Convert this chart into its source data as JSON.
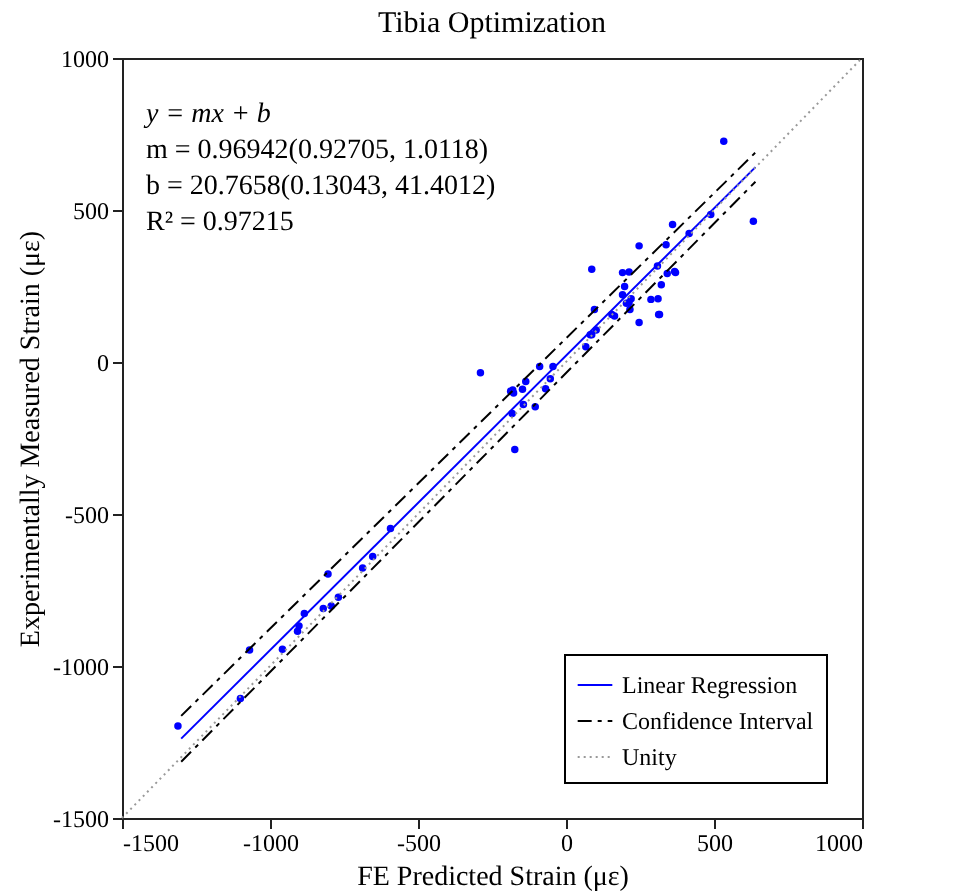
{
  "chart_data": {
    "type": "scatter",
    "title": "Tibia Optimization",
    "xlabel": "FE Predicted Strain (με)",
    "ylabel": "Experimentally Measured Strain (με)",
    "xlim": [
      -1500,
      1000
    ],
    "xticks": [
      -1500,
      -1000,
      -500,
      0,
      500,
      1000
    ],
    "ylim": [
      -1500,
      1000
    ],
    "yticks": [
      -1500,
      -1000,
      -500,
      0,
      500,
      1000
    ],
    "grid": false,
    "legend": "bottom right",
    "annotations": [
      "y = mx + b",
      "m = 0.96942(0.92705, 1.0118)",
      "b = 20.7658(0.13043, 41.4012)",
      "R² = 0.97215"
    ],
    "series": [
      {
        "marker": "circle",
        "color": "#0000ff",
        "x": [
          -1311,
          -1069,
          -1100,
          -958,
          -907,
          -902,
          -884,
          -804,
          -820,
          -793,
          -769,
          -687,
          -653,
          -593,
          -289,
          -187,
          -177,
          -180,
          -147,
          -136,
          -182,
          -173,
          -144,
          -104,
          -89,
          -69,
          -53,
          -44,
          67,
          87,
          102,
          96,
          155,
          216,
          247,
          316,
          533,
          633,
          360,
          489,
          416,
          247,
          338,
          87,
          191,
          213,
          309,
          342,
          367,
          370,
          322,
          198,
          191,
          220,
          204,
          213,
          287,
          311,
          313,
          164,
          82
        ],
        "values": [
          -1197,
          -947,
          -1107,
          -945,
          -886,
          -868,
          -827,
          -697,
          -811,
          -803,
          -774,
          -678,
          -640,
          -548,
          -35,
          -96,
          -102,
          -92,
          -90,
          -64,
          -169,
          -288,
          -140,
          -147,
          -15,
          -88,
          -55,
          -15,
          50,
          90,
          105,
          173,
          156,
          173,
          130,
          156,
          726,
          463,
          452,
          485,
          423,
          382,
          386,
          305,
          294,
          296,
          316,
          291,
          298,
          294,
          254,
          248,
          221,
          208,
          193,
          195,
          206,
          208,
          156,
          151,
          90
        ]
      },
      {
        "type": "line",
        "name": "Linear Regression",
        "color": "#0000ff",
        "line_style": "solid",
        "x": [
          -1300,
          640
        ],
        "values": [
          -1239,
          641
        ]
      },
      {
        "type": "line",
        "name": "Confidence Interval",
        "color": "#000000",
        "line_style": "dashed",
        "x": [
          -1300,
          640
        ],
        "values": [
          -1164,
          689
        ]
      },
      {
        "type": "line",
        "color": "#000000",
        "line_style": "dashed",
        "x": [
          -1300,
          640
        ],
        "values": [
          -1315,
          593
        ]
      },
      {
        "type": "line",
        "name": "Unity",
        "color": "#999999",
        "line_style": "dotted",
        "x": [
          -1500,
          1000
        ],
        "values": [
          -1500,
          1000
        ]
      }
    ]
  }
}
